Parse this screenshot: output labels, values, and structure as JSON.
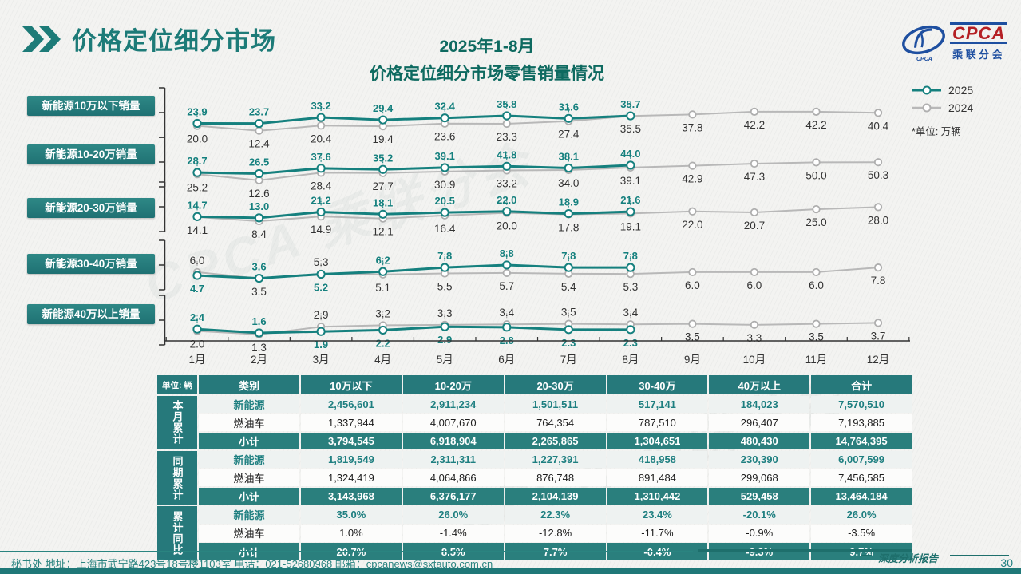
{
  "header": {
    "title": "价格定位细分市场",
    "logo": {
      "cpca": "CPCA",
      "cn": "乘联分会"
    }
  },
  "colors": {
    "accent": "#1f7a78",
    "line_2025": "#15807e",
    "line_2024": "#b8b8b8",
    "label_2025": "#15807e",
    "label_2024": "#333333",
    "logo_blue": "#1e4fa0",
    "logo_red": "#b52025"
  },
  "chart_data": {
    "type": "line",
    "title_line1": "2025年1-8月",
    "title_line2": "价格定位细分市场零售销量情况",
    "legend": [
      {
        "label": "2025"
      },
      {
        "label": "2024"
      }
    ],
    "unit_note": "*单位: 万辆",
    "x": [
      "1月",
      "2月",
      "3月",
      "4月",
      "5月",
      "6月",
      "7月",
      "8月",
      "9月",
      "10月",
      "11月",
      "12月"
    ],
    "rows": [
      {
        "label": "新能源10万以下销量",
        "series": [
          {
            "name": "2025",
            "values": [
              23.9,
              23.7,
              33.2,
              29.4,
              32.4,
              35.8,
              31.6,
              35.7
            ]
          },
          {
            "name": "2024",
            "values": [
              20.0,
              12.4,
              20.4,
              19.4,
              23.6,
              23.3,
              27.4,
              35.5,
              37.8,
              42.2,
              42.2,
              40.4
            ]
          }
        ]
      },
      {
        "label": "新能源10-20万销量",
        "series": [
          {
            "name": "2025",
            "values": [
              28.7,
              26.5,
              37.6,
              35.2,
              39.1,
              41.8,
              38.1,
              44.0
            ]
          },
          {
            "name": "2024",
            "values": [
              25.2,
              12.6,
              28.4,
              27.7,
              30.9,
              33.2,
              34.0,
              39.1,
              42.9,
              47.3,
              50.0,
              50.3
            ]
          }
        ]
      },
      {
        "label": "新能源20-30万销量",
        "series": [
          {
            "name": "2025",
            "values": [
              14.7,
              13.0,
              21.2,
              18.1,
              20.5,
              22.0,
              18.9,
              21.6
            ]
          },
          {
            "name": "2024",
            "values": [
              14.1,
              8.4,
              14.9,
              12.1,
              16.4,
              20.0,
              17.8,
              19.1,
              22.0,
              20.7,
              25.0,
              28.0
            ]
          }
        ]
      },
      {
        "label": "新能源30-40万销量",
        "series": [
          {
            "name": "2025",
            "values": [
              4.7,
              3.6,
              5.2,
              6.2,
              7.8,
              8.8,
              7.8,
              7.8
            ]
          },
          {
            "name": "2024",
            "values": [
              6.0,
              3.5,
              5.3,
              5.1,
              5.5,
              5.7,
              5.4,
              5.3,
              6.0,
              6.0,
              6.0,
              7.8
            ]
          }
        ]
      },
      {
        "label": "新能源40万以上销量",
        "series": [
          {
            "name": "2025",
            "values": [
              2.4,
              1.6,
              1.9,
              2.2,
              2.9,
              2.8,
              2.3,
              2.3
            ]
          },
          {
            "name": "2024",
            "values": [
              2.0,
              1.3,
              2.9,
              3.2,
              3.3,
              3.4,
              3.5,
              3.4,
              3.5,
              3.3,
              3.5,
              3.7
            ]
          }
        ]
      }
    ]
  },
  "table": {
    "unit_label": "单位: 辆",
    "col_headers": [
      "类别",
      "10万以下",
      "10-20万",
      "20-30万",
      "30-40万",
      "40万以上",
      "合计"
    ],
    "groups": [
      {
        "label": "本月累计",
        "rows": [
          {
            "label": "新能源",
            "values": [
              "2,456,601",
              "2,911,234",
              "1,501,511",
              "517,141",
              "184,023",
              "7,570,510"
            ]
          },
          {
            "label": "燃油车",
            "values": [
              "1,337,944",
              "4,007,670",
              "764,354",
              "787,510",
              "296,407",
              "7,193,885"
            ]
          },
          {
            "label": "小计",
            "values": [
              "3,794,545",
              "6,918,904",
              "2,265,865",
              "1,304,651",
              "480,430",
              "14,764,395"
            ]
          }
        ]
      },
      {
        "label": "同期累计",
        "rows": [
          {
            "label": "新能源",
            "values": [
              "1,819,549",
              "2,311,311",
              "1,227,391",
              "418,958",
              "230,390",
              "6,007,599"
            ]
          },
          {
            "label": "燃油车",
            "values": [
              "1,324,419",
              "4,064,866",
              "876,748",
              "891,484",
              "299,068",
              "7,456,585"
            ]
          },
          {
            "label": "小计",
            "values": [
              "3,143,968",
              "6,376,177",
              "2,104,139",
              "1,310,442",
              "529,458",
              "13,464,184"
            ]
          }
        ]
      },
      {
        "label": "累计同比",
        "rows": [
          {
            "label": "新能源",
            "values": [
              "35.0%",
              "26.0%",
              "22.3%",
              "23.4%",
              "-20.1%",
              "26.0%"
            ]
          },
          {
            "label": "燃油车",
            "values": [
              "1.0%",
              "-1.4%",
              "-12.8%",
              "-11.7%",
              "-0.9%",
              "-3.5%"
            ]
          },
          {
            "label": "小计",
            "values": [
              "20.7%",
              "8.5%",
              "7.7%",
              "-0.4%",
              "-9.3%",
              "9.7%"
            ]
          }
        ]
      }
    ]
  },
  "footer": {
    "secretariat": "秘书处  地址：上海市武宁路423号18号楼1103室  电话：021-52680968  邮箱：cpcanews@sxtauto.com.cn",
    "report_label": "深度分析报告",
    "page": "30"
  }
}
